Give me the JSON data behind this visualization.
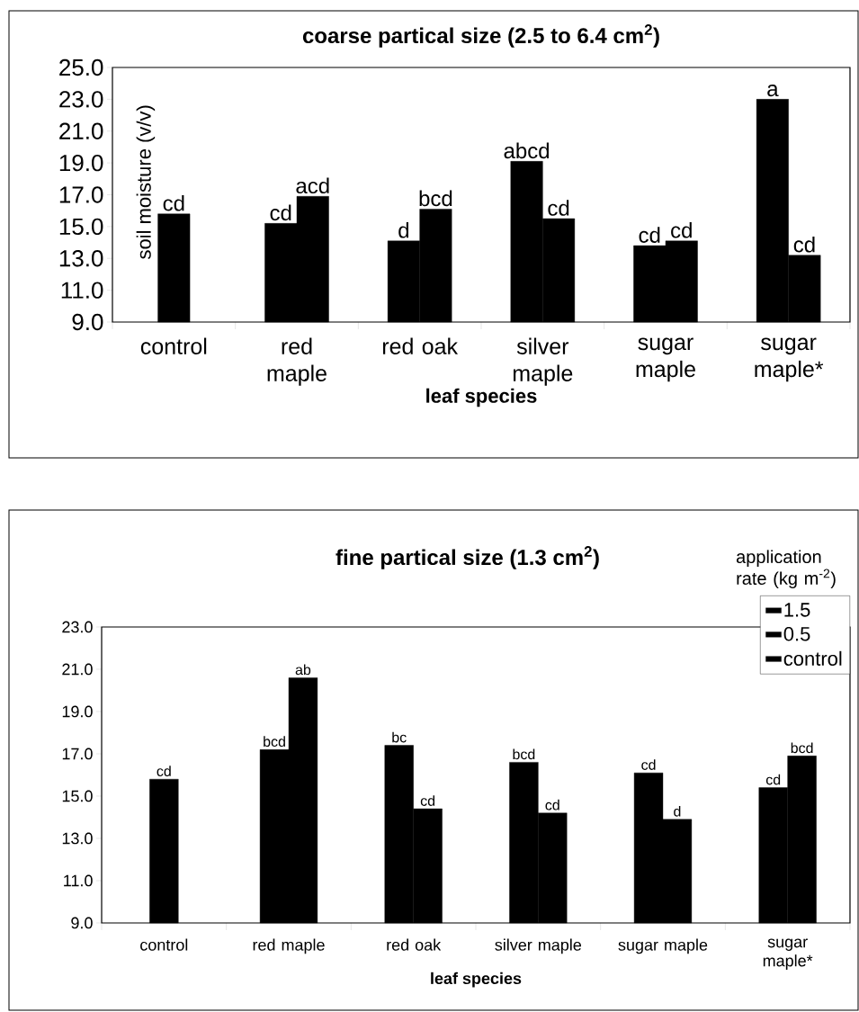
{
  "chart_data": [
    {
      "type": "bar",
      "title": "coarse partical size (2.5 to 6.4 cm$^{2}$)",
      "xlabel": "leaf species",
      "ylabel": "soil moisture (v/v)",
      "categories": [
        "control",
        "red maple",
        "red oak",
        "silver maple",
        "sugar maple",
        "sugar maple*"
      ],
      "ylim": [
        9,
        25
      ],
      "yticks": [
        {
          "value": 9,
          "label": "9.0"
        },
        {
          "value": 11,
          "label": "11.0"
        },
        {
          "value": 13,
          "label": "13.0"
        },
        {
          "value": 15,
          "label": "15.0"
        },
        {
          "value": 17,
          "label": "17.0"
        },
        {
          "value": 19,
          "label": "19.0"
        },
        {
          "value": 21,
          "label": "21.0"
        },
        {
          "value": 23,
          "label": "23.0"
        },
        {
          "value": 25,
          "label": "25.0"
        }
      ],
      "series": [
        {
          "color": "#000000",
          "values": [
            null,
            15.2,
            14.1,
            19.1,
            13.8,
            23.0
          ],
          "value_labels": [
            null,
            "cd",
            "d",
            "abcd",
            "cd",
            "a"
          ]
        },
        {
          "color": "#000000",
          "values": [
            null,
            16.9,
            16.1,
            15.5,
            14.1,
            13.2
          ],
          "value_labels": [
            null,
            "acd",
            "bcd",
            "cd",
            "cd",
            "cd"
          ]
        },
        {
          "color": "#000000",
          "values": [
            15.8,
            null,
            null,
            null,
            null,
            null
          ],
          "value_labels": [
            "cd",
            null,
            null,
            null,
            null,
            null
          ]
        }
      ]
    },
    {
      "type": "bar",
      "title": "fine partical size (1.3 cm$^{2}$)",
      "xlabel": "leaf species",
      "legend_title": "application rate (kg m$^{-2}$)",
      "legend": "top right",
      "categories": [
        "control",
        "red maple",
        "red oak",
        "silver maple",
        "sugar maple",
        "sugar maple*"
      ],
      "ylim": [
        9,
        23
      ],
      "yticks": [
        {
          "value": 9,
          "label": "9.0"
        },
        {
          "value": 11,
          "label": "11.0"
        },
        {
          "value": 13,
          "label": "13.0"
        },
        {
          "value": 15,
          "label": "15.0"
        },
        {
          "value": 17,
          "label": "17.0"
        },
        {
          "value": 19,
          "label": "19.0"
        },
        {
          "value": 21,
          "label": "21.0"
        },
        {
          "value": 23,
          "label": "23.0"
        }
      ],
      "series": [
        {
          "name": "1.5",
          "color": "#000000",
          "values": [
            null,
            17.2,
            17.4,
            16.6,
            16.1,
            15.4
          ],
          "value_labels": [
            null,
            "bcd",
            "bc",
            "bcd",
            "cd",
            "cd"
          ]
        },
        {
          "name": "0.5",
          "color": "#000000",
          "values": [
            null,
            20.6,
            14.4,
            14.2,
            13.9,
            16.9
          ],
          "value_labels": [
            null,
            "ab",
            "cd",
            "cd",
            "d",
            "bcd"
          ]
        },
        {
          "name": "control",
          "color": "#000000",
          "values": [
            15.8,
            null,
            null,
            null,
            null,
            null
          ],
          "value_labels": [
            "cd",
            null,
            null,
            null,
            null,
            null
          ]
        }
      ]
    }
  ]
}
